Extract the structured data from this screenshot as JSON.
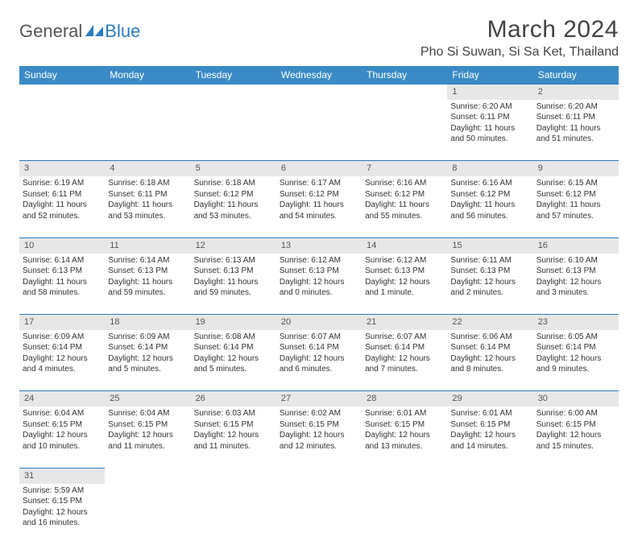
{
  "logo": {
    "text1": "General",
    "text2": "Blue"
  },
  "title": "March 2024",
  "location": "Pho Si Suwan, Si Sa Ket, Thailand",
  "colors": {
    "header_bg": "#3a8ac6",
    "header_text": "#ffffff",
    "daynum_bg": "#e7e7e7",
    "border": "#2b7bbd",
    "logo_blue": "#2b7bbd",
    "text": "#333333"
  },
  "day_headers": [
    "Sunday",
    "Monday",
    "Tuesday",
    "Wednesday",
    "Thursday",
    "Friday",
    "Saturday"
  ],
  "weeks": [
    [
      null,
      null,
      null,
      null,
      null,
      {
        "n": "1",
        "sr": "Sunrise: 6:20 AM",
        "ss": "Sunset: 6:11 PM",
        "dl": "Daylight: 11 hours and 50 minutes."
      },
      {
        "n": "2",
        "sr": "Sunrise: 6:20 AM",
        "ss": "Sunset: 6:11 PM",
        "dl": "Daylight: 11 hours and 51 minutes."
      }
    ],
    [
      {
        "n": "3",
        "sr": "Sunrise: 6:19 AM",
        "ss": "Sunset: 6:11 PM",
        "dl": "Daylight: 11 hours and 52 minutes."
      },
      {
        "n": "4",
        "sr": "Sunrise: 6:18 AM",
        "ss": "Sunset: 6:11 PM",
        "dl": "Daylight: 11 hours and 53 minutes."
      },
      {
        "n": "5",
        "sr": "Sunrise: 6:18 AM",
        "ss": "Sunset: 6:12 PM",
        "dl": "Daylight: 11 hours and 53 minutes."
      },
      {
        "n": "6",
        "sr": "Sunrise: 6:17 AM",
        "ss": "Sunset: 6:12 PM",
        "dl": "Daylight: 11 hours and 54 minutes."
      },
      {
        "n": "7",
        "sr": "Sunrise: 6:16 AM",
        "ss": "Sunset: 6:12 PM",
        "dl": "Daylight: 11 hours and 55 minutes."
      },
      {
        "n": "8",
        "sr": "Sunrise: 6:16 AM",
        "ss": "Sunset: 6:12 PM",
        "dl": "Daylight: 11 hours and 56 minutes."
      },
      {
        "n": "9",
        "sr": "Sunrise: 6:15 AM",
        "ss": "Sunset: 6:12 PM",
        "dl": "Daylight: 11 hours and 57 minutes."
      }
    ],
    [
      {
        "n": "10",
        "sr": "Sunrise: 6:14 AM",
        "ss": "Sunset: 6:13 PM",
        "dl": "Daylight: 11 hours and 58 minutes."
      },
      {
        "n": "11",
        "sr": "Sunrise: 6:14 AM",
        "ss": "Sunset: 6:13 PM",
        "dl": "Daylight: 11 hours and 59 minutes."
      },
      {
        "n": "12",
        "sr": "Sunrise: 6:13 AM",
        "ss": "Sunset: 6:13 PM",
        "dl": "Daylight: 11 hours and 59 minutes."
      },
      {
        "n": "13",
        "sr": "Sunrise: 6:12 AM",
        "ss": "Sunset: 6:13 PM",
        "dl": "Daylight: 12 hours and 0 minutes."
      },
      {
        "n": "14",
        "sr": "Sunrise: 6:12 AM",
        "ss": "Sunset: 6:13 PM",
        "dl": "Daylight: 12 hours and 1 minute."
      },
      {
        "n": "15",
        "sr": "Sunrise: 6:11 AM",
        "ss": "Sunset: 6:13 PM",
        "dl": "Daylight: 12 hours and 2 minutes."
      },
      {
        "n": "16",
        "sr": "Sunrise: 6:10 AM",
        "ss": "Sunset: 6:13 PM",
        "dl": "Daylight: 12 hours and 3 minutes."
      }
    ],
    [
      {
        "n": "17",
        "sr": "Sunrise: 6:09 AM",
        "ss": "Sunset: 6:14 PM",
        "dl": "Daylight: 12 hours and 4 minutes."
      },
      {
        "n": "18",
        "sr": "Sunrise: 6:09 AM",
        "ss": "Sunset: 6:14 PM",
        "dl": "Daylight: 12 hours and 5 minutes."
      },
      {
        "n": "19",
        "sr": "Sunrise: 6:08 AM",
        "ss": "Sunset: 6:14 PM",
        "dl": "Daylight: 12 hours and 5 minutes."
      },
      {
        "n": "20",
        "sr": "Sunrise: 6:07 AM",
        "ss": "Sunset: 6:14 PM",
        "dl": "Daylight: 12 hours and 6 minutes."
      },
      {
        "n": "21",
        "sr": "Sunrise: 6:07 AM",
        "ss": "Sunset: 6:14 PM",
        "dl": "Daylight: 12 hours and 7 minutes."
      },
      {
        "n": "22",
        "sr": "Sunrise: 6:06 AM",
        "ss": "Sunset: 6:14 PM",
        "dl": "Daylight: 12 hours and 8 minutes."
      },
      {
        "n": "23",
        "sr": "Sunrise: 6:05 AM",
        "ss": "Sunset: 6:14 PM",
        "dl": "Daylight: 12 hours and 9 minutes."
      }
    ],
    [
      {
        "n": "24",
        "sr": "Sunrise: 6:04 AM",
        "ss": "Sunset: 6:15 PM",
        "dl": "Daylight: 12 hours and 10 minutes."
      },
      {
        "n": "25",
        "sr": "Sunrise: 6:04 AM",
        "ss": "Sunset: 6:15 PM",
        "dl": "Daylight: 12 hours and 11 minutes."
      },
      {
        "n": "26",
        "sr": "Sunrise: 6:03 AM",
        "ss": "Sunset: 6:15 PM",
        "dl": "Daylight: 12 hours and 11 minutes."
      },
      {
        "n": "27",
        "sr": "Sunrise: 6:02 AM",
        "ss": "Sunset: 6:15 PM",
        "dl": "Daylight: 12 hours and 12 minutes."
      },
      {
        "n": "28",
        "sr": "Sunrise: 6:01 AM",
        "ss": "Sunset: 6:15 PM",
        "dl": "Daylight: 12 hours and 13 minutes."
      },
      {
        "n": "29",
        "sr": "Sunrise: 6:01 AM",
        "ss": "Sunset: 6:15 PM",
        "dl": "Daylight: 12 hours and 14 minutes."
      },
      {
        "n": "30",
        "sr": "Sunrise: 6:00 AM",
        "ss": "Sunset: 6:15 PM",
        "dl": "Daylight: 12 hours and 15 minutes."
      }
    ],
    [
      {
        "n": "31",
        "sr": "Sunrise: 5:59 AM",
        "ss": "Sunset: 6:15 PM",
        "dl": "Daylight: 12 hours and 16 minutes."
      },
      null,
      null,
      null,
      null,
      null,
      null
    ]
  ]
}
